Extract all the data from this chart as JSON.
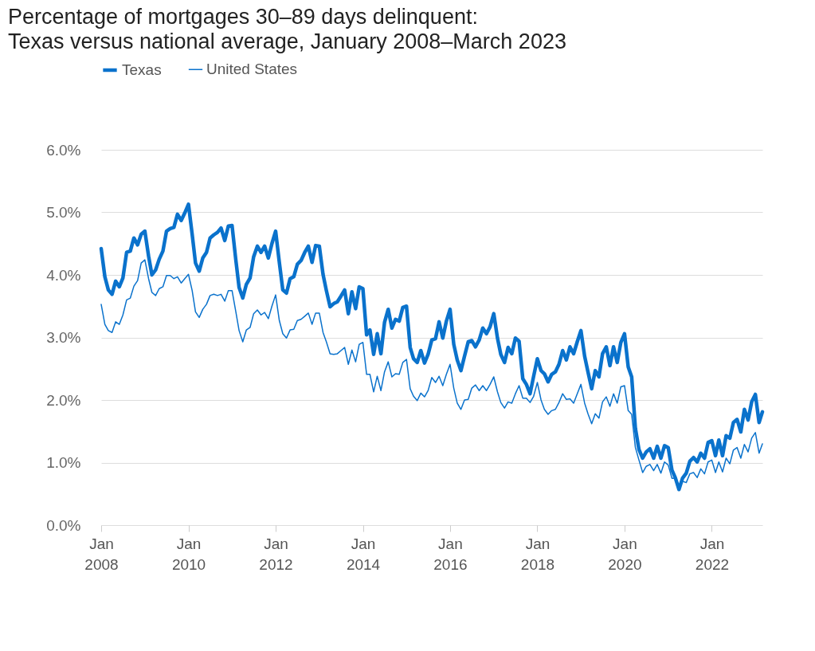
{
  "chart_data": {
    "type": "line",
    "title": "Percentage of mortgages 30–89 days delinquent:",
    "subtitle": "Texas versus national average, January 2008–March 2023",
    "x": [
      "2008-01",
      "2008-02",
      "2008-03",
      "2008-04",
      "2008-05",
      "2008-06",
      "2008-07",
      "2008-08",
      "2008-09",
      "2008-10",
      "2008-11",
      "2008-12",
      "2009-01",
      "2009-02",
      "2009-03",
      "2009-04",
      "2009-05",
      "2009-06",
      "2009-07",
      "2009-08",
      "2009-09",
      "2009-10",
      "2009-11",
      "2009-12",
      "2010-01",
      "2010-02",
      "2010-03",
      "2010-04",
      "2010-05",
      "2010-06",
      "2010-07",
      "2010-08",
      "2010-09",
      "2010-10",
      "2010-11",
      "2010-12",
      "2011-01",
      "2011-02",
      "2011-03",
      "2011-04",
      "2011-05",
      "2011-06",
      "2011-07",
      "2011-08",
      "2011-09",
      "2011-10",
      "2011-11",
      "2011-12",
      "2012-01",
      "2012-02",
      "2012-03",
      "2012-04",
      "2012-05",
      "2012-06",
      "2012-07",
      "2012-08",
      "2012-09",
      "2012-10",
      "2012-11",
      "2012-12",
      "2013-01",
      "2013-02",
      "2013-03",
      "2013-04",
      "2013-05",
      "2013-06",
      "2013-07",
      "2013-08",
      "2013-09",
      "2013-10",
      "2013-11",
      "2013-12",
      "2014-01",
      "2014-02",
      "2014-03",
      "2014-04",
      "2014-05",
      "2014-06",
      "2014-07",
      "2014-08",
      "2014-09",
      "2014-10",
      "2014-11",
      "2014-12",
      "2015-01",
      "2015-02",
      "2015-03",
      "2015-04",
      "2015-05",
      "2015-06",
      "2015-07",
      "2015-08",
      "2015-09",
      "2015-10",
      "2015-11",
      "2015-12",
      "2016-01",
      "2016-02",
      "2016-03",
      "2016-04",
      "2016-05",
      "2016-06",
      "2016-07",
      "2016-08",
      "2016-09",
      "2016-10",
      "2016-11",
      "2016-12",
      "2017-01",
      "2017-02",
      "2017-03",
      "2017-04",
      "2017-05",
      "2017-06",
      "2017-07",
      "2017-08",
      "2017-09",
      "2017-10",
      "2017-11",
      "2017-12",
      "2018-01",
      "2018-02",
      "2018-03",
      "2018-04",
      "2018-05",
      "2018-06",
      "2018-07",
      "2018-08",
      "2018-09",
      "2018-10",
      "2018-11",
      "2018-12",
      "2019-01",
      "2019-02",
      "2019-03",
      "2019-04",
      "2019-05",
      "2019-06",
      "2019-07",
      "2019-08",
      "2019-09",
      "2019-10",
      "2019-11",
      "2019-12",
      "2020-01",
      "2020-02",
      "2020-03",
      "2020-04",
      "2020-05",
      "2020-06",
      "2020-07",
      "2020-08",
      "2020-09",
      "2020-10",
      "2020-11",
      "2020-12",
      "2021-01",
      "2021-02",
      "2021-03",
      "2021-04",
      "2021-05",
      "2021-06",
      "2021-07",
      "2021-08",
      "2021-09",
      "2021-10",
      "2021-11",
      "2021-12",
      "2022-01",
      "2022-02",
      "2022-03",
      "2022-04",
      "2022-05",
      "2022-06",
      "2022-07",
      "2022-08",
      "2022-09",
      "2022-10",
      "2022-11",
      "2022-12",
      "2023-01",
      "2023-02",
      "2023-03"
    ],
    "series": [
      {
        "name": "Texas",
        "color": "#0a72cc",
        "values": [
          4.42,
          3.97,
          3.76,
          3.69,
          3.9,
          3.81,
          3.95,
          4.36,
          4.38,
          4.59,
          4.48,
          4.65,
          4.7,
          4.3,
          4.0,
          4.08,
          4.25,
          4.38,
          4.7,
          4.74,
          4.76,
          4.97,
          4.87,
          4.99,
          5.13,
          4.65,
          4.19,
          4.06,
          4.27,
          4.36,
          4.59,
          4.64,
          4.68,
          4.75,
          4.55,
          4.78,
          4.79,
          4.25,
          3.8,
          3.63,
          3.85,
          3.95,
          4.29,
          4.46,
          4.36,
          4.46,
          4.27,
          4.5,
          4.7,
          4.2,
          3.76,
          3.71,
          3.94,
          3.97,
          4.17,
          4.23,
          4.36,
          4.46,
          4.2,
          4.47,
          4.46,
          4.01,
          3.75,
          3.49,
          3.54,
          3.57,
          3.66,
          3.76,
          3.38,
          3.73,
          3.46,
          3.81,
          3.78,
          3.04,
          3.12,
          2.73,
          3.06,
          2.74,
          3.24,
          3.45,
          3.15,
          3.29,
          3.26,
          3.48,
          3.5,
          2.84,
          2.66,
          2.6,
          2.79,
          2.59,
          2.73,
          2.96,
          2.98,
          3.25,
          2.99,
          3.26,
          3.45,
          2.89,
          2.64,
          2.47,
          2.7,
          2.93,
          2.95,
          2.85,
          2.96,
          3.15,
          3.06,
          3.17,
          3.38,
          2.99,
          2.73,
          2.6,
          2.84,
          2.74,
          2.99,
          2.94,
          2.34,
          2.25,
          2.1,
          2.38,
          2.66,
          2.47,
          2.42,
          2.29,
          2.41,
          2.45,
          2.57,
          2.79,
          2.64,
          2.85,
          2.74,
          2.93,
          3.11,
          2.7,
          2.45,
          2.18,
          2.47,
          2.37,
          2.74,
          2.85,
          2.55,
          2.85,
          2.6,
          2.92,
          3.06,
          2.53,
          2.37,
          1.55,
          1.21,
          1.07,
          1.17,
          1.22,
          1.07,
          1.26,
          1.07,
          1.27,
          1.24,
          0.88,
          0.76,
          0.57,
          0.75,
          0.83,
          1.02,
          1.08,
          1.01,
          1.15,
          1.07,
          1.32,
          1.35,
          1.11,
          1.36,
          1.11,
          1.43,
          1.39,
          1.64,
          1.69,
          1.49,
          1.85,
          1.68,
          1.97,
          2.09,
          1.64,
          1.81
        ]
      },
      {
        "name": "United States",
        "color": "#0a72cc",
        "values": [
          3.53,
          3.21,
          3.11,
          3.08,
          3.25,
          3.21,
          3.36,
          3.6,
          3.63,
          3.82,
          3.91,
          4.19,
          4.24,
          3.94,
          3.72,
          3.67,
          3.78,
          3.81,
          3.99,
          3.99,
          3.94,
          3.97,
          3.87,
          3.94,
          4.01,
          3.75,
          3.41,
          3.32,
          3.45,
          3.53,
          3.67,
          3.69,
          3.67,
          3.69,
          3.58,
          3.75,
          3.75,
          3.42,
          3.11,
          2.93,
          3.12,
          3.16,
          3.38,
          3.44,
          3.36,
          3.4,
          3.3,
          3.5,
          3.68,
          3.27,
          3.06,
          2.99,
          3.12,
          3.13,
          3.27,
          3.29,
          3.34,
          3.39,
          3.21,
          3.39,
          3.39,
          3.08,
          2.93,
          2.74,
          2.73,
          2.74,
          2.79,
          2.84,
          2.57,
          2.8,
          2.61,
          2.89,
          2.92,
          2.41,
          2.41,
          2.13,
          2.38,
          2.15,
          2.45,
          2.61,
          2.37,
          2.42,
          2.41,
          2.6,
          2.65,
          2.18,
          2.06,
          1.99,
          2.11,
          2.05,
          2.15,
          2.36,
          2.28,
          2.38,
          2.23,
          2.41,
          2.57,
          2.19,
          1.95,
          1.85,
          2.0,
          2.01,
          2.19,
          2.24,
          2.15,
          2.23,
          2.15,
          2.25,
          2.37,
          2.13,
          1.96,
          1.87,
          1.97,
          1.95,
          2.1,
          2.23,
          2.03,
          2.03,
          1.96,
          2.06,
          2.28,
          2.0,
          1.85,
          1.77,
          1.83,
          1.85,
          1.96,
          2.1,
          2.01,
          2.02,
          1.95,
          2.1,
          2.25,
          1.95,
          1.78,
          1.62,
          1.78,
          1.71,
          1.97,
          2.05,
          1.9,
          2.1,
          1.95,
          2.21,
          2.23,
          1.83,
          1.77,
          1.24,
          1.04,
          0.84,
          0.94,
          0.97,
          0.87,
          0.97,
          0.83,
          1.01,
          0.96,
          0.75,
          0.75,
          0.62,
          0.7,
          0.68,
          0.82,
          0.84,
          0.76,
          0.9,
          0.82,
          1.01,
          1.04,
          0.84,
          1.01,
          0.85,
          1.07,
          0.98,
          1.2,
          1.24,
          1.07,
          1.29,
          1.17,
          1.39,
          1.48,
          1.15,
          1.3
        ]
      }
    ],
    "xlim": [
      "2008-01",
      "2023-03"
    ],
    "xticks": [
      {
        "value": "2008-01",
        "label": "Jan 2008"
      },
      {
        "value": "2010-01",
        "label": "Jan 2010"
      },
      {
        "value": "2012-01",
        "label": "Jan 2012"
      },
      {
        "value": "2014-01",
        "label": "Jan 2014"
      },
      {
        "value": "2016-01",
        "label": "Jan 2016"
      },
      {
        "value": "2018-01",
        "label": "Jan 2018"
      },
      {
        "value": "2020-01",
        "label": "Jan 2020"
      },
      {
        "value": "2022-01",
        "label": "Jan 2022"
      }
    ],
    "ylim": [
      0,
      6
    ],
    "yticks": [
      {
        "value": 0,
        "label": "0.0%"
      },
      {
        "value": 1,
        "label": "1.0%"
      },
      {
        "value": 2,
        "label": "2.0%"
      },
      {
        "value": 3,
        "label": "3.0%"
      },
      {
        "value": 4,
        "label": "4.0%"
      },
      {
        "value": 5,
        "label": "5.0%"
      },
      {
        "value": 6,
        "label": "6.0%"
      }
    ],
    "grid": "y",
    "legend": "top left",
    "marker": "none",
    "line_style": "solid"
  }
}
